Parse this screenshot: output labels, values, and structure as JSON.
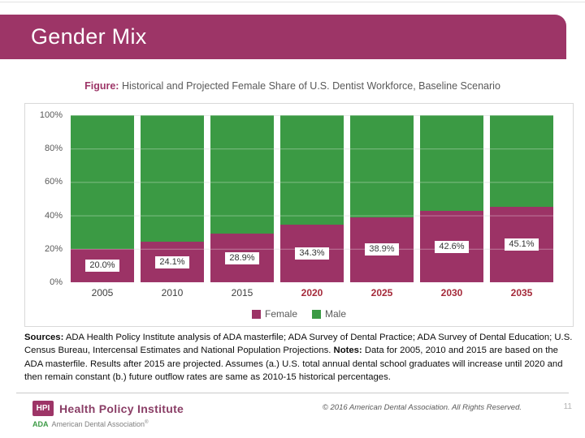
{
  "slide": {
    "title": "Gender Mix"
  },
  "figure_caption": {
    "label": "Figure:",
    "text": " Historical and Projected Female Share of U.S. Dentist Workforce, Baseline Scenario"
  },
  "chart_data": {
    "type": "bar",
    "stacked": true,
    "title": "Historical and Projected Female Share of U.S. Dentist Workforce, Baseline Scenario",
    "categories": [
      "2005",
      "2010",
      "2015",
      "2020",
      "2025",
      "2030",
      "2035"
    ],
    "projected_categories": [
      "2020",
      "2025",
      "2030",
      "2035"
    ],
    "series": [
      {
        "name": "Female",
        "color": "#9C3366",
        "values": [
          20.0,
          24.1,
          28.9,
          34.3,
          38.9,
          42.6,
          45.1
        ]
      },
      {
        "name": "Male",
        "color": "#3B9A44",
        "values": [
          80.0,
          75.9,
          71.1,
          65.7,
          61.1,
          57.4,
          54.9
        ]
      }
    ],
    "data_labels": [
      "20.0%",
      "24.1%",
      "28.9%",
      "34.3%",
      "38.9%",
      "42.6%",
      "45.1%"
    ],
    "y_ticks": [
      "100%",
      "80%",
      "60%",
      "40%",
      "20%",
      "0%"
    ],
    "ylim": [
      0,
      100
    ],
    "grid": true,
    "legend_position": "bottom"
  },
  "sources": {
    "label": "Sources:",
    "text": " ADA Health Policy Institute analysis of ADA masterfile; ADA Survey of Dental Practice; ADA Survey of Dental Education; U.S. Census Bureau, Intercensal Estimates and National Population Projections.  ",
    "notes_label": "Notes:",
    "notes_text": " Data for 2005, 2010 and 2015 are based on the ADA masterfile. Results after 2015 are projected. Assumes (a.) U.S. total annual dental school graduates will increase until 2020 and then remain constant (b.) future outflow rates are same as 2010-15 historical percentages."
  },
  "footer": {
    "hpi_logo": "HPI",
    "institute": "Health Policy Institute",
    "ada_logo": "ADA",
    "ada_text": "American Dental Association",
    "registered_mark": "®",
    "copyright": "© 2016 American Dental Association. All Rights Reserved.",
    "page": "11"
  },
  "colors": {
    "accent": "#9D3567",
    "female": "#9C3366",
    "male": "#3B9A44",
    "projected_year": "#A52A3A",
    "historical_year": "#404040"
  }
}
